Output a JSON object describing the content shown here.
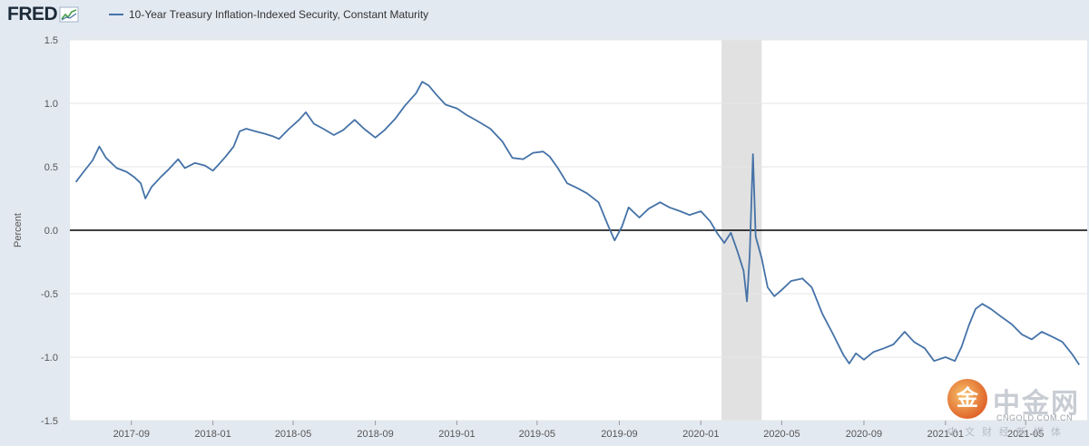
{
  "header": {
    "logo_text": "FRED",
    "legend_label": "10-Year Treasury Inflation-Indexed Security, Constant Maturity",
    "series_color": "#4572a7"
  },
  "chart_data": {
    "type": "line",
    "title": "",
    "xlabel": "",
    "ylabel": "Percent",
    "ylim": [
      -1.5,
      1.5
    ],
    "yticks": [
      1.5,
      1.0,
      0.5,
      0.0,
      -0.5,
      -1.0,
      -1.5
    ],
    "yticklabels": [
      "1.5",
      "1.0",
      "0.5",
      "0.0",
      "-0.5",
      "-1.0",
      "-1.5"
    ],
    "xlim": [
      "2017-06",
      "2021-08"
    ],
    "xticks": [
      "2017-09",
      "2018-01",
      "2018-05",
      "2018-09",
      "2019-01",
      "2019-05",
      "2019-09",
      "2020-01",
      "2020-05",
      "2020-09",
      "2021-01",
      "2021-05"
    ],
    "recession": [
      "2020-02",
      "2020-04"
    ],
    "zero_line": true,
    "grid": "horizontal",
    "series": [
      {
        "name": "10-Year Treasury Inflation-Indexed Security, Constant Maturity",
        "color": "#4572a7",
        "points": [
          [
            "2017-06-10",
            0.38
          ],
          [
            "2017-06-20",
            0.45
          ],
          [
            "2017-07-05",
            0.55
          ],
          [
            "2017-07-15",
            0.66
          ],
          [
            "2017-07-25",
            0.57
          ],
          [
            "2017-08-10",
            0.49
          ],
          [
            "2017-08-25",
            0.46
          ],
          [
            "2017-09-05",
            0.42
          ],
          [
            "2017-09-15",
            0.37
          ],
          [
            "2017-09-22",
            0.25
          ],
          [
            "2017-10-01",
            0.34
          ],
          [
            "2017-10-15",
            0.42
          ],
          [
            "2017-10-25",
            0.47
          ],
          [
            "2017-11-10",
            0.56
          ],
          [
            "2017-11-20",
            0.49
          ],
          [
            "2017-12-05",
            0.53
          ],
          [
            "2017-12-20",
            0.51
          ],
          [
            "2018-01-01",
            0.47
          ],
          [
            "2018-01-10",
            0.52
          ],
          [
            "2018-01-20",
            0.58
          ],
          [
            "2018-02-01",
            0.66
          ],
          [
            "2018-02-10",
            0.78
          ],
          [
            "2018-02-20",
            0.8
          ],
          [
            "2018-03-05",
            0.78
          ],
          [
            "2018-03-20",
            0.76
          ],
          [
            "2018-04-01",
            0.74
          ],
          [
            "2018-04-10",
            0.72
          ],
          [
            "2018-04-25",
            0.8
          ],
          [
            "2018-05-10",
            0.87
          ],
          [
            "2018-05-20",
            0.93
          ],
          [
            "2018-06-01",
            0.84
          ],
          [
            "2018-06-15",
            0.8
          ],
          [
            "2018-07-01",
            0.75
          ],
          [
            "2018-07-15",
            0.79
          ],
          [
            "2018-08-01",
            0.87
          ],
          [
            "2018-08-15",
            0.8
          ],
          [
            "2018-09-01",
            0.73
          ],
          [
            "2018-09-15",
            0.79
          ],
          [
            "2018-10-01",
            0.88
          ],
          [
            "2018-10-15",
            0.98
          ],
          [
            "2018-11-01",
            1.08
          ],
          [
            "2018-11-10",
            1.17
          ],
          [
            "2018-11-20",
            1.14
          ],
          [
            "2018-12-01",
            1.07
          ],
          [
            "2018-12-15",
            0.99
          ],
          [
            "2019-01-01",
            0.96
          ],
          [
            "2019-01-15",
            0.91
          ],
          [
            "2019-02-01",
            0.86
          ],
          [
            "2019-02-20",
            0.8
          ],
          [
            "2019-03-10",
            0.7
          ],
          [
            "2019-03-25",
            0.57
          ],
          [
            "2019-04-10",
            0.56
          ],
          [
            "2019-04-25",
            0.61
          ],
          [
            "2019-05-10",
            0.62
          ],
          [
            "2019-05-20",
            0.58
          ],
          [
            "2019-06-01",
            0.49
          ],
          [
            "2019-06-15",
            0.37
          ],
          [
            "2019-07-01",
            0.33
          ],
          [
            "2019-07-15",
            0.29
          ],
          [
            "2019-08-01",
            0.22
          ],
          [
            "2019-08-15",
            0.04
          ],
          [
            "2019-08-25",
            -0.08
          ],
          [
            "2019-09-05",
            0.03
          ],
          [
            "2019-09-15",
            0.18
          ],
          [
            "2019-10-01",
            0.1
          ],
          [
            "2019-10-15",
            0.17
          ],
          [
            "2019-11-01",
            0.22
          ],
          [
            "2019-11-15",
            0.18
          ],
          [
            "2019-12-01",
            0.15
          ],
          [
            "2019-12-15",
            0.12
          ],
          [
            "2020-01-01",
            0.15
          ],
          [
            "2020-01-15",
            0.07
          ],
          [
            "2020-01-25",
            -0.02
          ],
          [
            "2020-02-05",
            -0.1
          ],
          [
            "2020-02-15",
            -0.02
          ],
          [
            "2020-02-25",
            -0.17
          ],
          [
            "2020-03-05",
            -0.32
          ],
          [
            "2020-03-10",
            -0.56
          ],
          [
            "2020-03-14",
            -0.2
          ],
          [
            "2020-03-19",
            0.6
          ],
          [
            "2020-03-23",
            -0.05
          ],
          [
            "2020-04-01",
            -0.22
          ],
          [
            "2020-04-10",
            -0.45
          ],
          [
            "2020-04-20",
            -0.52
          ],
          [
            "2020-05-01",
            -0.47
          ],
          [
            "2020-05-15",
            -0.4
          ],
          [
            "2020-06-01",
            -0.38
          ],
          [
            "2020-06-15",
            -0.45
          ],
          [
            "2020-07-01",
            -0.66
          ],
          [
            "2020-07-15",
            -0.8
          ],
          [
            "2020-08-01",
            -0.98
          ],
          [
            "2020-08-10",
            -1.05
          ],
          [
            "2020-08-20",
            -0.97
          ],
          [
            "2020-09-01",
            -1.02
          ],
          [
            "2020-09-15",
            -0.96
          ],
          [
            "2020-10-01",
            -0.93
          ],
          [
            "2020-10-15",
            -0.9
          ],
          [
            "2020-11-01",
            -0.8
          ],
          [
            "2020-11-15",
            -0.88
          ],
          [
            "2020-12-01",
            -0.93
          ],
          [
            "2020-12-15",
            -1.03
          ],
          [
            "2021-01-01",
            -1.0
          ],
          [
            "2021-01-15",
            -1.03
          ],
          [
            "2021-01-25",
            -0.92
          ],
          [
            "2021-02-05",
            -0.75
          ],
          [
            "2021-02-15",
            -0.62
          ],
          [
            "2021-02-25",
            -0.58
          ],
          [
            "2021-03-10",
            -0.62
          ],
          [
            "2021-03-25",
            -0.68
          ],
          [
            "2021-04-10",
            -0.74
          ],
          [
            "2021-04-25",
            -0.82
          ],
          [
            "2021-05-10",
            -0.86
          ],
          [
            "2021-05-25",
            -0.8
          ],
          [
            "2021-06-10",
            -0.84
          ],
          [
            "2021-06-25",
            -0.88
          ],
          [
            "2021-07-10",
            -0.98
          ],
          [
            "2021-07-20",
            -1.06
          ]
        ]
      }
    ]
  },
  "watermark": {
    "logo_char": "金",
    "name": "中金网",
    "domain": "CNGOLD.COM.CN",
    "slogan": "中文财经新媒体"
  }
}
